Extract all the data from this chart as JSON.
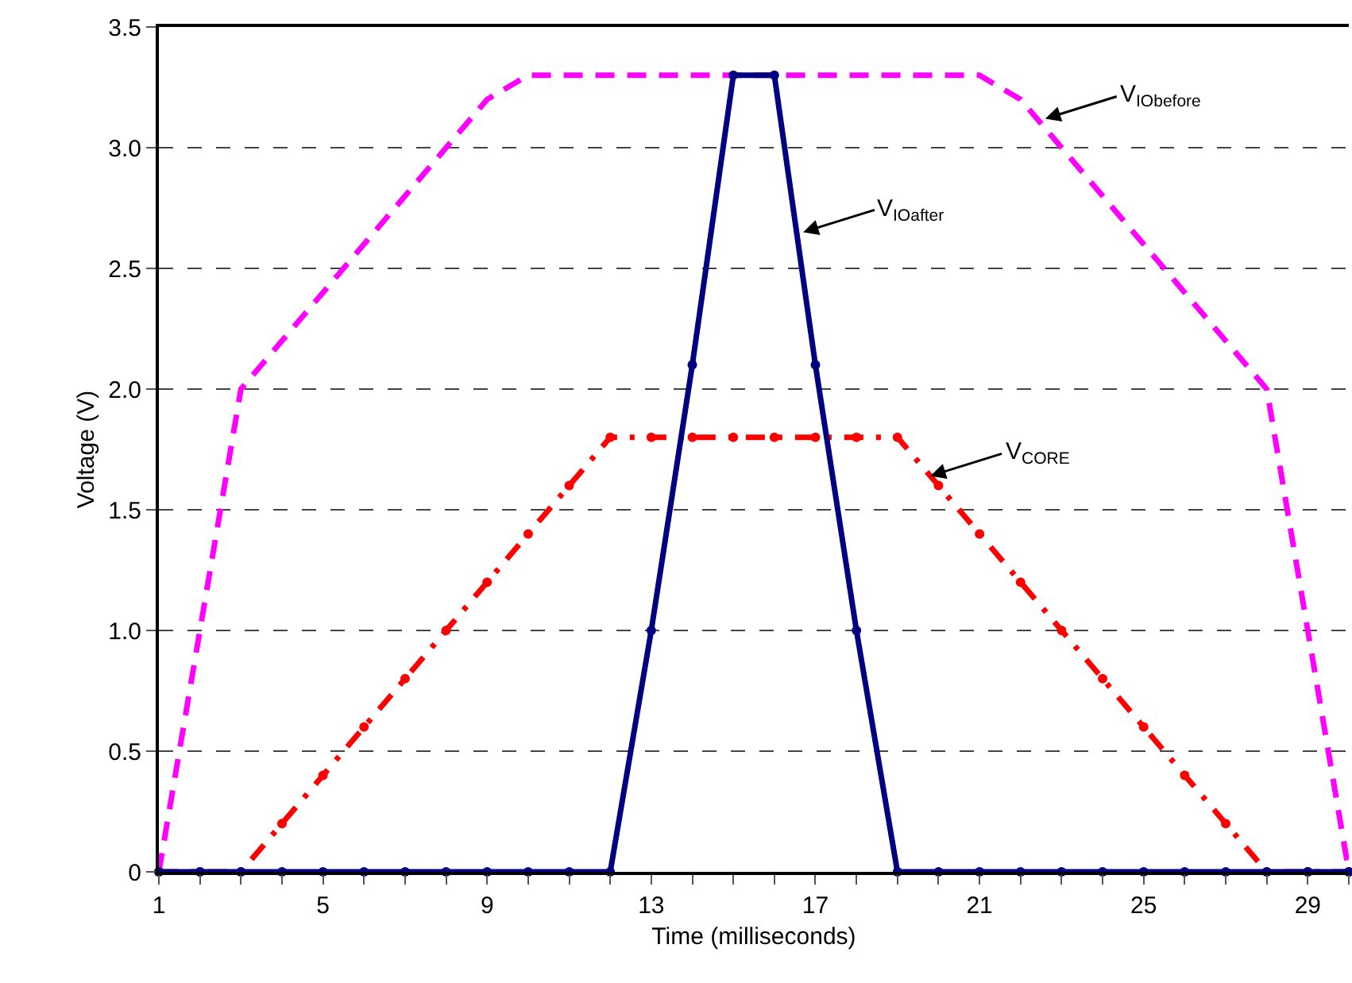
{
  "chart_data": {
    "type": "line",
    "xlabel": "Time (milliseconds)",
    "ylabel": "Voltage (V)",
    "x": [
      1,
      2,
      3,
      4,
      5,
      6,
      7,
      8,
      9,
      10,
      11,
      12,
      13,
      14,
      15,
      16,
      17,
      18,
      19,
      20,
      21,
      22,
      23,
      24,
      25,
      26,
      27,
      28,
      29,
      30
    ],
    "series": [
      {
        "color": "#ff00ff",
        "line_style": "dashed",
        "marker": "none",
        "values": [
          0,
          1.0,
          2.0,
          2.2,
          2.4,
          2.6,
          2.8,
          3.0,
          3.2,
          3.3,
          3.3,
          3.3,
          3.3,
          3.3,
          3.3,
          3.3,
          3.3,
          3.3,
          3.3,
          3.3,
          3.3,
          3.2,
          3.0,
          2.8,
          2.6,
          2.4,
          2.2,
          2.0,
          1.0,
          0
        ]
      },
      {
        "color": "#ff0000",
        "line_style": "dashdot",
        "marker": "circle",
        "values": [
          0,
          0,
          0,
          0.2,
          0.4,
          0.6,
          0.8,
          1.0,
          1.2,
          1.4,
          1.6,
          1.8,
          1.8,
          1.8,
          1.8,
          1.8,
          1.8,
          1.8,
          1.8,
          1.6,
          1.4,
          1.2,
          1.0,
          0.8,
          0.6,
          0.4,
          0.2,
          0,
          0,
          0
        ]
      },
      {
        "color": "#000080",
        "line_style": "solid",
        "marker": "circle",
        "values": [
          0,
          0,
          0,
          0,
          0,
          0,
          0,
          0,
          0,
          0,
          0,
          0,
          1.0,
          2.1,
          3.3,
          3.3,
          2.1,
          1.0,
          0,
          0,
          0,
          0,
          0,
          0,
          0,
          0,
          0,
          0,
          0,
          0
        ]
      }
    ],
    "annotations": [
      {
        "text": "V$_{IObefore}$",
        "x": 22.6,
        "y": 3.12
      },
      {
        "text": "V$_{IOafter}$",
        "x": 16.7,
        "y": 2.65
      },
      {
        "text": "V$_{CORE}$",
        "x": 19.8,
        "y": 1.64
      }
    ],
    "xlim": [
      1,
      30
    ],
    "xticks": [
      1,
      {
        "value": 2,
        "label": null
      },
      {
        "value": 3,
        "label": null
      },
      {
        "value": 4,
        "label": null
      },
      5,
      {
        "value": 6,
        "label": null
      },
      {
        "value": 7,
        "label": null
      },
      {
        "value": 8,
        "label": null
      },
      9,
      {
        "value": 10,
        "label": null
      },
      {
        "value": 11,
        "label": null
      },
      {
        "value": 12,
        "label": null
      },
      13,
      {
        "value": 14,
        "label": null
      },
      {
        "value": 15,
        "label": null
      },
      {
        "value": 16,
        "label": null
      },
      17,
      {
        "value": 18,
        "label": null
      },
      {
        "value": 19,
        "label": null
      },
      {
        "value": 20,
        "label": null
      },
      21,
      {
        "value": 22,
        "label": null
      },
      {
        "value": 23,
        "label": null
      },
      {
        "value": 24,
        "label": null
      },
      25,
      {
        "value": 26,
        "label": null
      },
      {
        "value": 27,
        "label": null
      },
      {
        "value": 28,
        "label": null
      },
      29,
      {
        "value": 30,
        "label": null
      }
    ],
    "ylim": [
      0,
      3.5
    ],
    "yticks": [
      0,
      {
        "value": 0.5,
        "label": "0.5"
      },
      {
        "value": 1,
        "label": "1.0"
      },
      {
        "value": 1.5,
        "label": "1.5"
      },
      {
        "value": 2,
        "label": "2.0"
      },
      {
        "value": 2.5,
        "label": "2.5"
      },
      {
        "value": 3,
        "label": "3.0"
      },
      {
        "value": 3.5,
        "label": "3.5"
      }
    ],
    "grid": "y"
  }
}
